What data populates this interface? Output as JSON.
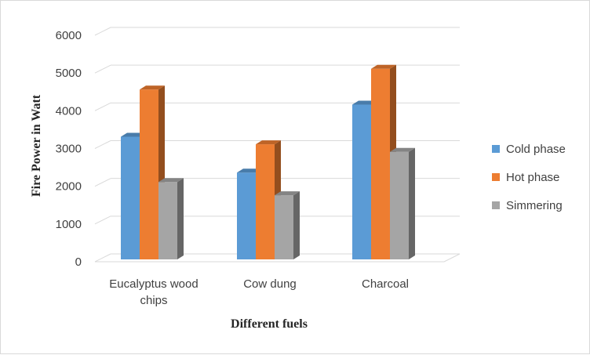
{
  "chart_data": {
    "type": "bar",
    "style": "3d-clustered-column",
    "categories": [
      "Eucalyptus wood chips",
      "Cow dung",
      "Charcoal"
    ],
    "category_label_lines": [
      [
        "Eucalyptus wood",
        "chips"
      ],
      [
        "Cow dung"
      ],
      [
        "Charcoal"
      ]
    ],
    "series": [
      {
        "name": "Cold phase",
        "values": [
          3250,
          2300,
          4100
        ],
        "color": "#5b9bd5"
      },
      {
        "name": "Hot phase",
        "values": [
          4500,
          3050,
          5050
        ],
        "color": "#ed7d31"
      },
      {
        "name": "Simmering",
        "values": [
          2050,
          1700,
          2850
        ],
        "color": "#a5a5a5"
      }
    ],
    "title": "",
    "xlabel": "Different fuels",
    "ylabel": "Fire Power in Watt",
    "ylim": [
      0,
      6000
    ],
    "yticks": [
      0,
      1000,
      2000,
      3000,
      4000,
      5000,
      6000
    ],
    "grid": true,
    "legend": "right"
  }
}
